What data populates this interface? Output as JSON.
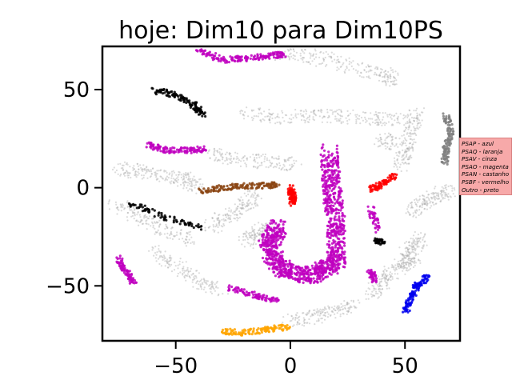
{
  "chart_data": {
    "type": "scatter",
    "title": "hoje: Dim10 para Dim10PS",
    "xlabel": "",
    "ylabel": "",
    "xlim": [
      -82,
      74
    ],
    "ylim": [
      -78,
      72
    ],
    "xticks": [
      -50,
      0,
      50
    ],
    "yticks": [
      50,
      0,
      -50
    ],
    "xtick_labels": [
      "−50",
      "0",
      "50"
    ],
    "ytick_labels": [
      "50",
      "0",
      "−50"
    ],
    "grid": false,
    "legend_placement": "right, outside plot",
    "legend": [
      "PSAP - azul",
      "PSAQ - laranja",
      "PSAV - cinza",
      "PSAO - magenta",
      "PSAN - castanho",
      "PSBF - vermelho",
      "Outro - preto"
    ],
    "colors": {
      "azul": "#0000ee",
      "laranja": "#ffa500",
      "cinza": "#808080",
      "magenta": "#bf00bf",
      "castanho": "#8b4513",
      "vermelho": "#ff0000",
      "preto": "#000000",
      "background_points": "#b0b0b0",
      "legend_background": "#f7a9a9"
    },
    "series": [
      {
        "name": "PSAO - magenta",
        "color": "magenta",
        "segments": [
          [
            [
              -40,
              70
            ],
            [
              -30,
              65
            ],
            [
              -20,
              66
            ],
            [
              -10,
              67
            ],
            [
              -3,
              68
            ]
          ],
          [
            [
              -62,
              22
            ],
            [
              -55,
              19
            ],
            [
              -45,
              19
            ],
            [
              -37,
              20
            ]
          ],
          [
            [
              -75,
              -36
            ],
            [
              -72,
              -42
            ],
            [
              -68,
              -49
            ]
          ],
          [
            [
              -26,
              -51
            ],
            [
              -15,
              -55
            ],
            [
              -5,
              -58
            ]
          ],
          [
            [
              17,
              18
            ],
            [
              18,
              0
            ],
            [
              20,
              -20
            ],
            [
              20,
              -38
            ],
            [
              10,
              -45
            ],
            [
              -3,
              -42
            ],
            [
              -10,
              -30
            ],
            [
              -5,
              -20
            ]
          ],
          [
            [
              35,
              -10
            ],
            [
              38,
              -22
            ]
          ],
          [
            [
              35,
              -43
            ],
            [
              37,
              -48
            ]
          ]
        ]
      },
      {
        "name": "PSAN - castanho",
        "color": "castanho",
        "segments": [
          [
            [
              -40,
              -2
            ],
            [
              -30,
              0
            ],
            [
              -20,
              1
            ],
            [
              -10,
              1
            ],
            [
              -6,
              2
            ]
          ]
        ]
      },
      {
        "name": "PSBF - vermelho",
        "color": "vermelho",
        "segments": [
          [
            [
              0,
              0
            ],
            [
              1,
              -4
            ],
            [
              1,
              -8
            ]
          ],
          [
            [
              35,
              -1
            ],
            [
              40,
              2
            ],
            [
              45,
              6
            ]
          ]
        ]
      },
      {
        "name": "PSAP - azul",
        "color": "azul",
        "segments": [
          [
            [
              50,
              -63
            ],
            [
              53,
              -56
            ],
            [
              55,
              -50
            ],
            [
              60,
              -45
            ]
          ]
        ]
      },
      {
        "name": "PSAQ - laranja",
        "color": "laranja",
        "segments": [
          [
            [
              -30,
              -73
            ],
            [
              -20,
              -74
            ],
            [
              -10,
              -72
            ],
            [
              0,
              -71
            ]
          ]
        ]
      },
      {
        "name": "PSAV - cinza",
        "color": "cinza",
        "segments": [
          [
            [
              68,
              37
            ],
            [
              70,
              28
            ],
            [
              68,
              20
            ],
            [
              67,
              12
            ]
          ]
        ]
      },
      {
        "name": "Outro - preto",
        "color": "preto",
        "segments": [
          [
            [
              -60,
              50
            ],
            [
              -50,
              47
            ],
            [
              -42,
              42
            ],
            [
              -38,
              37
            ]
          ],
          [
            [
              -70,
              -8
            ],
            [
              -55,
              -15
            ],
            [
              -40,
              -20
            ]
          ],
          [
            [
              38,
              -27
            ],
            [
              40,
              -28
            ]
          ]
        ]
      }
    ],
    "background_clusters": [
      [
        [
          -5,
          68
        ],
        [
          10,
          67
        ],
        [
          25,
          62
        ],
        [
          40,
          58
        ],
        [
          45,
          55
        ]
      ],
      [
        [
          -20,
          38
        ],
        [
          -5,
          36
        ],
        [
          10,
          37
        ],
        [
          25,
          36
        ],
        [
          40,
          35
        ],
        [
          55,
          34
        ]
      ],
      [
        [
          -35,
          17
        ],
        [
          -25,
          15
        ],
        [
          -10,
          13
        ],
        [
          2,
          12
        ]
      ],
      [
        [
          -75,
          10
        ],
        [
          -65,
          8
        ],
        [
          -55,
          6
        ],
        [
          -45,
          4
        ],
        [
          -40,
          0
        ]
      ],
      [
        [
          -77,
          -8
        ],
        [
          -65,
          -15
        ],
        [
          -55,
          -22
        ],
        [
          -42,
          -27
        ]
      ],
      [
        [
          -35,
          -20
        ],
        [
          -28,
          -15
        ],
        [
          -20,
          -10
        ],
        [
          -15,
          -3
        ]
      ],
      [
        [
          -60,
          -32
        ],
        [
          -50,
          -40
        ],
        [
          -40,
          -48
        ],
        [
          -30,
          -52
        ]
      ],
      [
        [
          -20,
          -28
        ],
        [
          -15,
          -24
        ],
        [
          -10,
          -20
        ]
      ],
      [
        [
          0,
          -68
        ],
        [
          10,
          -66
        ],
        [
          20,
          -62
        ],
        [
          28,
          -60
        ]
      ],
      [
        [
          40,
          25
        ],
        [
          45,
          22
        ]
      ],
      [
        [
          55,
          38
        ],
        [
          52,
          28
        ],
        [
          50,
          18
        ],
        [
          48,
          10
        ]
      ],
      [
        [
          52,
          -12
        ],
        [
          58,
          -8
        ],
        [
          64,
          -4
        ],
        [
          70,
          -1
        ]
      ],
      [
        [
          50,
          -35
        ],
        [
          54,
          -30
        ],
        [
          57,
          -25
        ]
      ],
      [
        [
          47,
          -42
        ],
        [
          50,
          -38
        ],
        [
          54,
          -35
        ]
      ],
      [
        [
          35,
          -55
        ],
        [
          40,
          -48
        ],
        [
          45,
          -42
        ]
      ]
    ]
  }
}
